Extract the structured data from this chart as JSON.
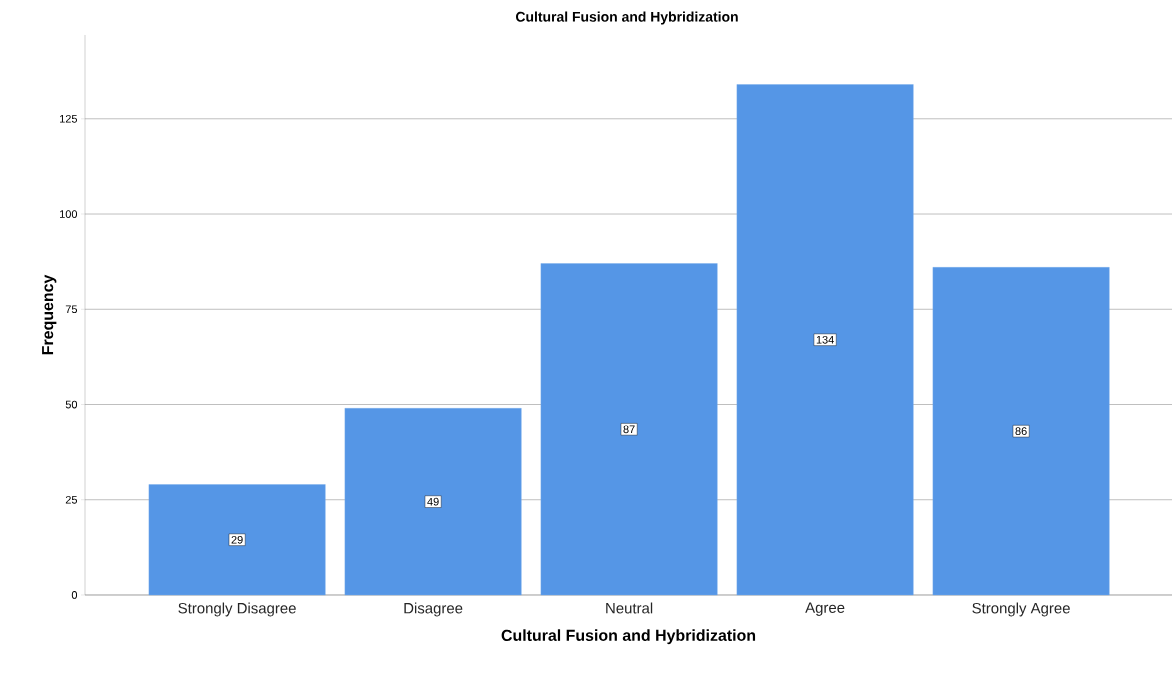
{
  "chart_data": {
    "type": "bar",
    "title": "Cultural Fusion and Hybridization",
    "xlabel": "Cultural Fusion and Hybridization",
    "ylabel": "Frequency",
    "categories": [
      "Strongly Disagree",
      "Disagree",
      "Neutral",
      "Agree",
      "Strongly Agree"
    ],
    "values": [
      29,
      49,
      87,
      134,
      86
    ],
    "color": "#5596e6",
    "ylim": [
      0,
      147
    ],
    "yticks": [
      0,
      25,
      50,
      75,
      100,
      125
    ],
    "grid": "y",
    "data_labels": true
  }
}
